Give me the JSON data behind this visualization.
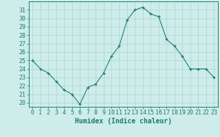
{
  "x": [
    0,
    1,
    2,
    3,
    4,
    5,
    6,
    7,
    8,
    9,
    10,
    11,
    12,
    13,
    14,
    15,
    16,
    17,
    18,
    19,
    20,
    21,
    22,
    23
  ],
  "y": [
    25.0,
    24.0,
    23.5,
    22.5,
    21.5,
    21.0,
    19.8,
    21.8,
    22.2,
    23.5,
    25.5,
    26.7,
    29.8,
    31.0,
    31.3,
    30.5,
    30.2,
    27.5,
    26.7,
    25.5,
    24.0,
    24.0,
    24.0,
    23.0
  ],
  "xlabel": "Humidex (Indice chaleur)",
  "ylim": [
    19.5,
    32
  ],
  "xlim": [
    -0.5,
    23.5
  ],
  "yticks": [
    20,
    21,
    22,
    23,
    24,
    25,
    26,
    27,
    28,
    29,
    30,
    31
  ],
  "xticks": [
    0,
    1,
    2,
    3,
    4,
    5,
    6,
    7,
    8,
    9,
    10,
    11,
    12,
    13,
    14,
    15,
    16,
    17,
    18,
    19,
    20,
    21,
    22,
    23
  ],
  "line_color": "#1a7a6e",
  "marker_color": "#1a7a6e",
  "bg_color": "#ceecea",
  "grid_color": "#aad4cf",
  "axis_color": "#1a7a6e",
  "xlabel_fontsize": 7,
  "tick_fontsize": 6
}
